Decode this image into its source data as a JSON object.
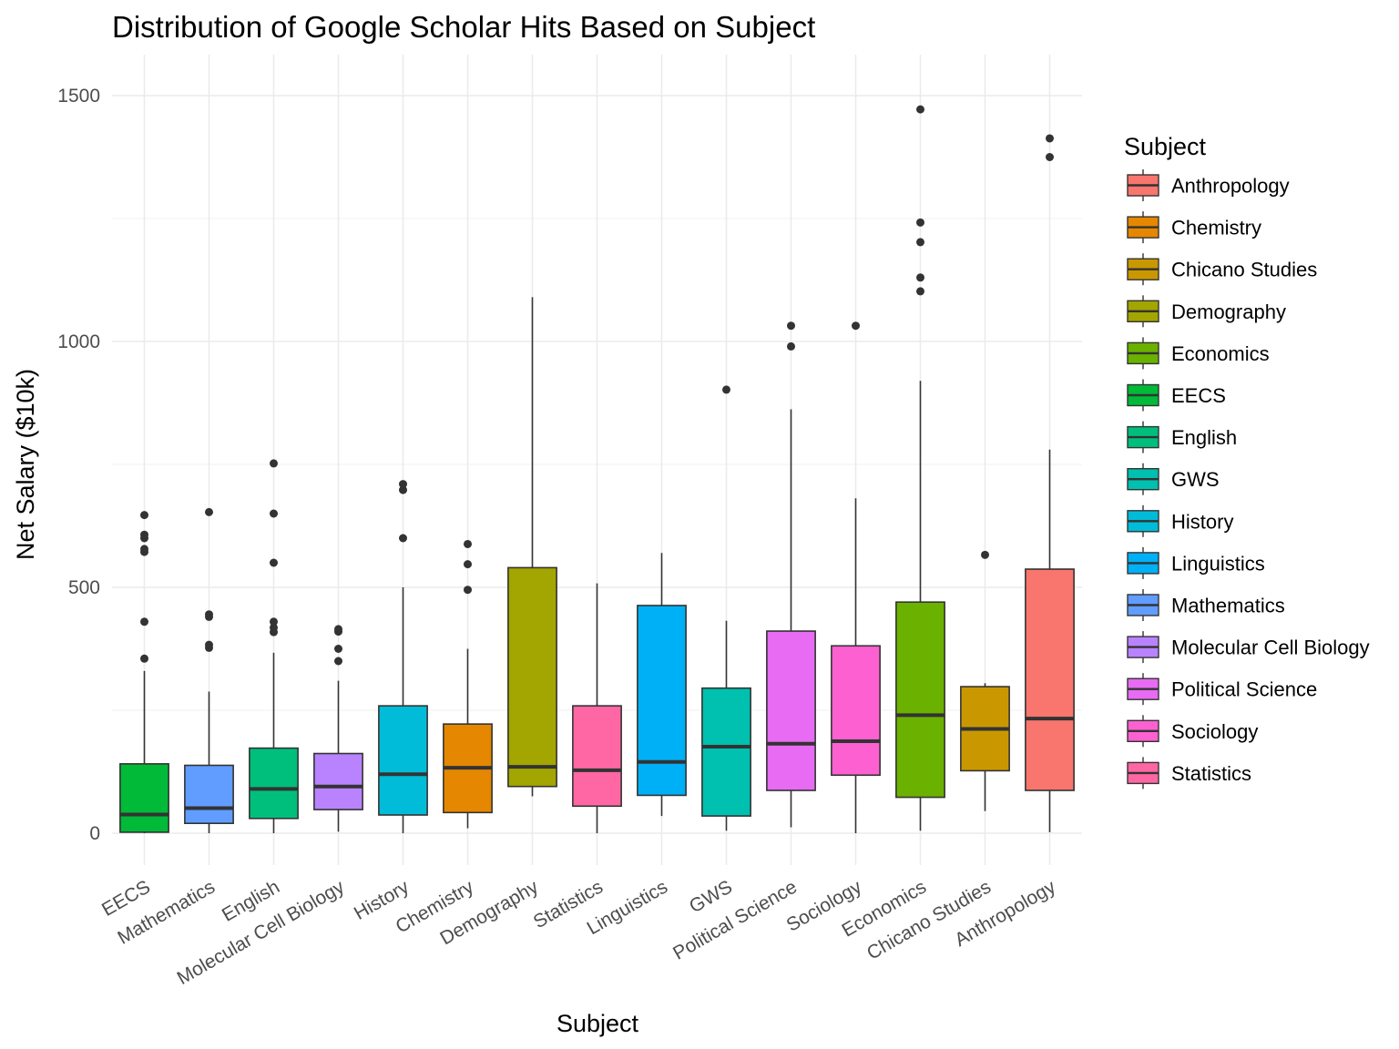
{
  "chart_data": {
    "type": "boxplot",
    "title": "Distribution of Google Scholar Hits Based on Subject",
    "xlabel": "Subject",
    "ylabel": "Net Salary ($10k)",
    "ylim": [
      -70,
      1575
    ],
    "yticks": [
      0,
      500,
      1000,
      1500
    ],
    "grid": true,
    "legend": {
      "title": "Subject",
      "position": "right",
      "entries": [
        {
          "label": "Anthropology",
          "color": "#F8766D"
        },
        {
          "label": "Chemistry",
          "color": "#E58700"
        },
        {
          "label": "Chicano Studies",
          "color": "#C99800"
        },
        {
          "label": "Demography",
          "color": "#A3A500"
        },
        {
          "label": "Economics",
          "color": "#6BB100"
        },
        {
          "label": "EECS",
          "color": "#00BA38"
        },
        {
          "label": "English",
          "color": "#00BF7D"
        },
        {
          "label": "GWS",
          "color": "#00C0AF"
        },
        {
          "label": "History",
          "color": "#00BCD8"
        },
        {
          "label": "Linguistics",
          "color": "#00B0F6"
        },
        {
          "label": "Mathematics",
          "color": "#619CFF"
        },
        {
          "label": "Molecular Cell Biology",
          "color": "#B983FF"
        },
        {
          "label": "Political Science",
          "color": "#E76BF3"
        },
        {
          "label": "Sociology",
          "color": "#FD61D1"
        },
        {
          "label": "Statistics",
          "color": "#FF67A4"
        }
      ]
    },
    "categories": [
      "EECS",
      "Mathematics",
      "English",
      "Molecular Cell Biology",
      "History",
      "Chemistry",
      "Demography",
      "Statistics",
      "Linguistics",
      "GWS",
      "Political Science",
      "Sociology",
      "Economics",
      "Chicano Studies",
      "Anthropology"
    ],
    "boxes": [
      {
        "category": "EECS",
        "color": "#00BA38",
        "min": 0,
        "q1": 2,
        "median": 38,
        "q3": 141,
        "max": 330,
        "outliers": [
          355,
          430,
          572,
          578,
          600,
          607,
          647
        ]
      },
      {
        "category": "Mathematics",
        "color": "#619CFF",
        "min": 0,
        "q1": 20,
        "median": 51,
        "q3": 138,
        "max": 288,
        "outliers": [
          377,
          383,
          440,
          445,
          653
        ]
      },
      {
        "category": "English",
        "color": "#00BF7D",
        "min": 0,
        "q1": 30,
        "median": 90,
        "q3": 173,
        "max": 367,
        "outliers": [
          409,
          418,
          430,
          550,
          650,
          752
        ]
      },
      {
        "category": "Molecular Cell Biology",
        "color": "#B983FF",
        "min": 3,
        "q1": 48,
        "median": 95,
        "q3": 162,
        "max": 310,
        "outliers": [
          350,
          375,
          410,
          415
        ]
      },
      {
        "category": "History",
        "color": "#00BCD8",
        "min": 0,
        "q1": 37,
        "median": 120,
        "q3": 259,
        "max": 500,
        "outliers": [
          600,
          698,
          710
        ]
      },
      {
        "category": "Chemistry",
        "color": "#E58700",
        "min": 10,
        "q1": 42,
        "median": 133,
        "q3": 222,
        "max": 375,
        "outliers": [
          495,
          547,
          588
        ]
      },
      {
        "category": "Demography",
        "color": "#A3A500",
        "min": 75,
        "q1": 95,
        "median": 135,
        "q3": 540,
        "max": 1090,
        "outliers": []
      },
      {
        "category": "Statistics",
        "color": "#FF67A4",
        "min": 0,
        "q1": 55,
        "median": 128,
        "q3": 259,
        "max": 508,
        "outliers": []
      },
      {
        "category": "Linguistics",
        "color": "#00B0F6",
        "min": 35,
        "q1": 77,
        "median": 145,
        "q3": 463,
        "max": 570,
        "outliers": []
      },
      {
        "category": "GWS",
        "color": "#00C0AF",
        "min": 5,
        "q1": 35,
        "median": 176,
        "q3": 295,
        "max": 432,
        "outliers": [
          902
        ]
      },
      {
        "category": "Political Science",
        "color": "#E76BF3",
        "min": 12,
        "q1": 87,
        "median": 182,
        "q3": 411,
        "max": 862,
        "outliers": [
          990,
          1032
        ]
      },
      {
        "category": "Sociology",
        "color": "#FD61D1",
        "min": 0,
        "q1": 118,
        "median": 187,
        "q3": 381,
        "max": 681,
        "outliers": [
          1032
        ]
      },
      {
        "category": "Economics",
        "color": "#6BB100",
        "min": 5,
        "q1": 73,
        "median": 240,
        "q3": 470,
        "max": 920,
        "outliers": [
          1102,
          1130,
          1202,
          1242,
          1472
        ]
      },
      {
        "category": "Chicano Studies",
        "color": "#C99800",
        "min": 45,
        "q1": 127,
        "median": 212,
        "q3": 298,
        "max": 305,
        "outliers": [
          566
        ]
      },
      {
        "category": "Anthropology",
        "color": "#F8766D",
        "min": 2,
        "q1": 87,
        "median": 233,
        "q3": 537,
        "max": 780,
        "outliers": [
          1375,
          1413
        ]
      }
    ]
  }
}
